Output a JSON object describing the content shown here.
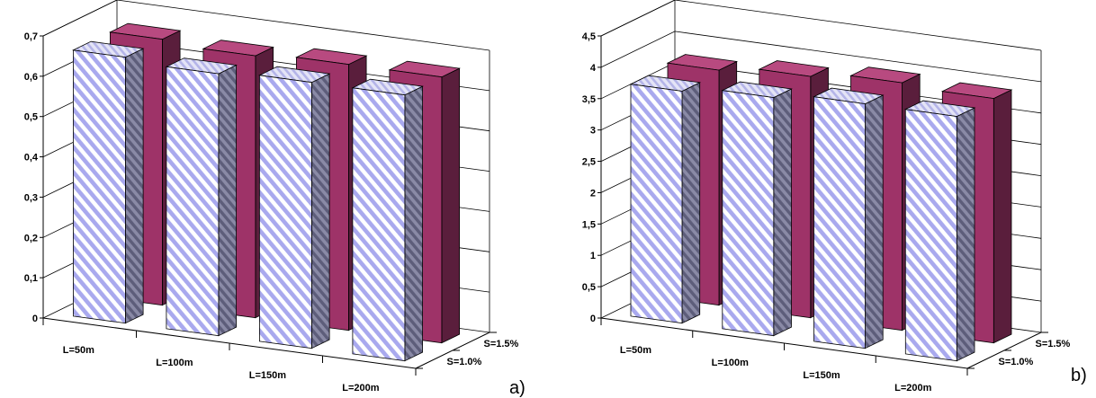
{
  "chart_data": [
    {
      "type": "bar",
      "panel_label": "a)",
      "categories": [
        "L=50m",
        "L=100m",
        "L=150m",
        "L=200m"
      ],
      "series": [
        {
          "name": "S=1.0%",
          "values": [
            0.66,
            0.65,
            0.66,
            0.66
          ]
        },
        {
          "name": "S=1.5%",
          "values": [
            0.66,
            0.65,
            0.66,
            0.66
          ]
        }
      ],
      "ylim": [
        0,
        0.7
      ],
      "yticks": [
        "0",
        "0,1",
        "0,2",
        "0,3",
        "0,4",
        "0,5",
        "0,6",
        "0,7"
      ],
      "grid": true,
      "colors": {
        "S=1.0%": "#b8b8f0",
        "S=1.5%": "#9e3368"
      }
    },
    {
      "type": "bar",
      "panel_label": "b)",
      "categories": [
        "L=50m",
        "L=100m",
        "L=150m",
        "L=200m"
      ],
      "series": [
        {
          "name": "S=1.0%",
          "values": [
            3.7,
            3.8,
            3.9,
            3.9
          ]
        },
        {
          "name": "S=1.5%",
          "values": [
            3.75,
            3.85,
            3.95,
            3.9
          ]
        }
      ],
      "ylim": [
        0,
        4.5
      ],
      "yticks": [
        "0",
        "0,5",
        "1",
        "1,5",
        "2",
        "2,5",
        "3",
        "3,5",
        "4",
        "4,5"
      ],
      "grid": true,
      "colors": {
        "S=1.0%": "#b8b8f0",
        "S=1.5%": "#9e3368"
      }
    }
  ]
}
